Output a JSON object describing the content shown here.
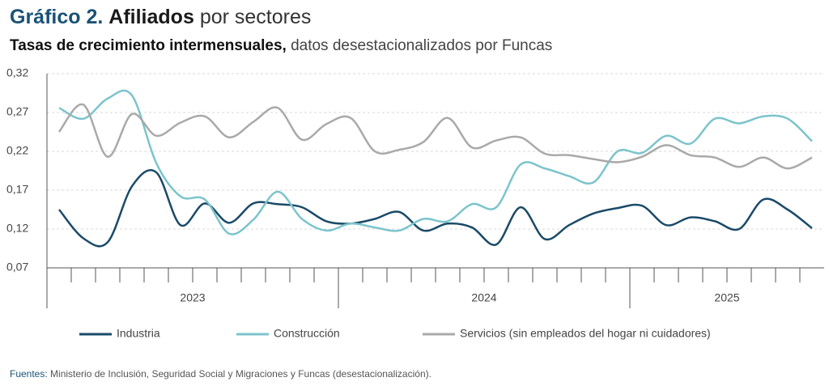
{
  "chart_data": {
    "type": "line",
    "title": [
      "Gráfico 2.",
      "Afiliados",
      "por sectores"
    ],
    "subtitle": [
      "Tasas de crecimiento intermensuales,",
      "datos desestacionalizados por Funcas"
    ],
    "source": [
      "Fuentes:",
      "Ministerio de Inclusión, Seguridad Social y Migraciones y Funcas (desestacionalización)."
    ],
    "categories": [
      null,
      null,
      null,
      null,
      null,
      null,
      null,
      null,
      null,
      null,
      null,
      null,
      null,
      null,
      null,
      null,
      null,
      null,
      null,
      null,
      null,
      null,
      null,
      null,
      null,
      null,
      null,
      null,
      null,
      null,
      null,
      null
    ],
    "x_groups": [
      {
        "label": "2023",
        "count": 12
      },
      {
        "label": "2024",
        "count": 12
      },
      {
        "label": "2025",
        "count": 8
      }
    ],
    "ylim": [
      0.07,
      0.32
    ],
    "yticks": [
      {
        "value": 0.07,
        "label": "0,07"
      },
      {
        "value": 0.12,
        "label": "0,12"
      },
      {
        "value": 0.17,
        "label": "0,17"
      },
      {
        "value": 0.22,
        "label": "0,22"
      },
      {
        "value": 0.27,
        "label": "0,27"
      },
      {
        "value": 0.32,
        "label": "0,32"
      }
    ],
    "grid": true,
    "series": [
      {
        "name": "Industria",
        "color": "#1a4a68",
        "values": [
          0.145,
          0.108,
          0.103,
          0.175,
          0.193,
          0.125,
          0.153,
          0.128,
          0.153,
          0.152,
          0.148,
          0.13,
          0.127,
          0.133,
          0.142,
          0.118,
          0.127,
          0.122,
          0.1,
          0.148,
          0.107,
          0.125,
          0.14,
          0.147,
          0.15,
          0.125,
          0.135,
          0.13,
          0.12,
          0.158,
          0.145,
          0.121
        ]
      },
      {
        "name": "Construcción",
        "color": "#7cc4cc",
        "values": [
          0.276,
          0.262,
          0.288,
          0.292,
          0.205,
          0.162,
          0.158,
          0.114,
          0.132,
          0.168,
          0.133,
          0.118,
          0.127,
          0.122,
          0.118,
          0.133,
          0.13,
          0.152,
          0.148,
          0.203,
          0.198,
          0.188,
          0.18,
          0.22,
          0.218,
          0.24,
          0.23,
          0.262,
          0.256,
          0.265,
          0.262,
          0.233
        ]
      },
      {
        "name": "Servicios (sin empleados del hogar ni cuidadores)",
        "color": "#a9a9a9",
        "values": [
          0.245,
          0.28,
          0.213,
          0.268,
          0.24,
          0.257,
          0.265,
          0.238,
          0.258,
          0.276,
          0.235,
          0.255,
          0.263,
          0.22,
          0.222,
          0.232,
          0.263,
          0.225,
          0.234,
          0.238,
          0.217,
          0.215,
          0.21,
          0.206,
          0.213,
          0.228,
          0.215,
          0.212,
          0.2,
          0.212,
          0.198,
          0.212
        ]
      }
    ]
  }
}
